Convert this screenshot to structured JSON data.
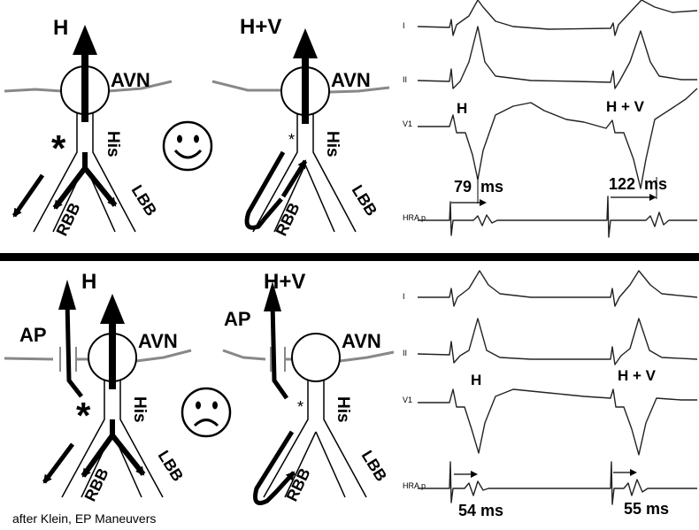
{
  "top": {
    "panel_left": {
      "arrow_label": "H",
      "node_label": "AVN",
      "his_label": "His",
      "rbb_label": "RBB",
      "lbb_label": "LBB"
    },
    "panel_right": {
      "arrow_label": "H+V",
      "node_label": "AVN",
      "his_label": "His",
      "rbb_label": "RBB",
      "lbb_label": "LBB"
    },
    "face": "happy",
    "ecg": {
      "leads": [
        "I",
        "II",
        "V1",
        "HRA p"
      ],
      "label_left": "H",
      "label_right": "H + V",
      "interval_left": "79  ms",
      "interval_right": "122  ms"
    }
  },
  "bottom": {
    "panel_left": {
      "arrow_label": "H",
      "pathway_label": "AP",
      "node_label": "AVN",
      "his_label": "His",
      "rbb_label": "RBB",
      "lbb_label": "LBB"
    },
    "panel_right": {
      "arrow_label": "H+V",
      "pathway_label": "AP",
      "node_label": "AVN",
      "his_label": "His",
      "rbb_label": "RBB",
      "lbb_label": "LBB"
    },
    "face": "sad",
    "ecg": {
      "leads": [
        "I",
        "II",
        "V1",
        "HRA p"
      ],
      "label_left": "H",
      "label_right": "H + V",
      "interval_left": "54 ms",
      "interval_right": "55 ms"
    }
  },
  "credit": "after Klein, EP Maneuvers"
}
